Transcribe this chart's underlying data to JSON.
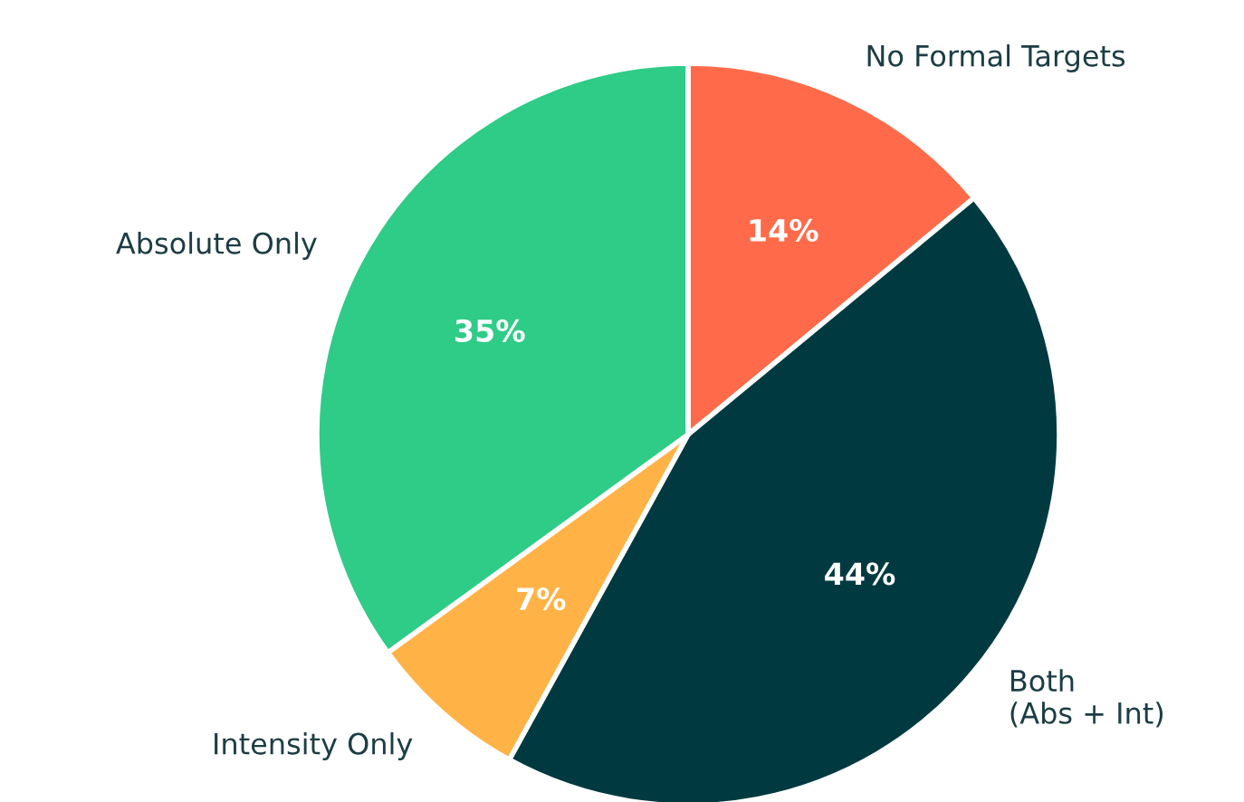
{
  "chart_data": {
    "type": "pie",
    "categories": [
      "No Formal Targets",
      "Both\n(Abs + Int)",
      "Intensity Only",
      "Absolute Only"
    ],
    "values": [
      14,
      44,
      7,
      35
    ],
    "value_labels": [
      "14%",
      "44%",
      "7%",
      "35%"
    ],
    "colors": [
      "#ff6b4a",
      "#003a40",
      "#ffb347",
      "#2ecc87"
    ],
    "legend": false
  }
}
